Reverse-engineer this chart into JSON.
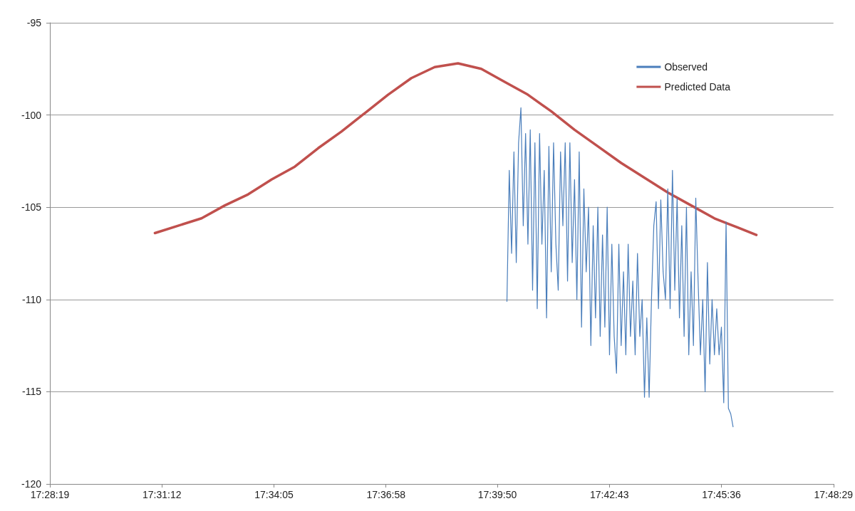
{
  "chart_data": {
    "type": "line",
    "xlim": [
      17.47194,
      17.80806
    ],
    "xticks": [
      {
        "value": 17.47194,
        "label": "17:28:19"
      },
      {
        "value": 17.52,
        "label": "17:31:12"
      },
      {
        "value": 17.56806,
        "label": "17:34:05"
      },
      {
        "value": 17.61611,
        "label": "17:36:58"
      },
      {
        "value": 17.66389,
        "label": "17:39:50"
      },
      {
        "value": 17.71194,
        "label": "17:42:43"
      },
      {
        "value": 17.76,
        "label": "17:45:36"
      },
      {
        "value": 17.80806,
        "label": "17:48:29"
      }
    ],
    "ylim": [
      -120,
      -95
    ],
    "yticks": [
      -120,
      -115,
      -110,
      -105,
      -100,
      -95
    ],
    "grid": "y",
    "legend": "top right",
    "marker": "none",
    "series": [
      {
        "name": "Observed",
        "color": "#4a7ebb",
        "x": [
          17.668,
          17.669,
          17.67,
          17.671,
          17.672,
          17.673,
          17.674,
          17.675,
          17.676,
          17.677,
          17.678,
          17.679,
          17.68,
          17.681,
          17.682,
          17.683,
          17.684,
          17.685,
          17.686,
          17.687,
          17.688,
          17.689,
          17.69,
          17.691,
          17.692,
          17.693,
          17.694,
          17.695,
          17.696,
          17.697,
          17.698,
          17.699,
          17.7,
          17.701,
          17.702,
          17.703,
          17.704,
          17.705,
          17.706,
          17.707,
          17.708,
          17.709,
          17.71,
          17.711,
          17.712,
          17.713,
          17.714,
          17.715,
          17.716,
          17.717,
          17.718,
          17.719,
          17.72,
          17.721,
          17.722,
          17.723,
          17.724,
          17.725,
          17.726,
          17.727,
          17.728,
          17.729,
          17.73,
          17.731,
          17.732,
          17.733,
          17.734,
          17.735,
          17.736,
          17.737,
          17.738,
          17.739,
          17.74,
          17.741,
          17.742,
          17.743,
          17.744,
          17.745,
          17.746,
          17.747,
          17.748,
          17.749,
          17.75,
          17.751,
          17.752,
          17.753,
          17.754,
          17.755,
          17.756,
          17.757,
          17.758,
          17.759,
          17.76,
          17.761,
          17.762,
          17.763,
          17.764,
          17.765
        ],
        "values": [
          -110.1,
          -103,
          -107.5,
          -102,
          -108,
          -101.5,
          -99.6,
          -106,
          -101,
          -107,
          -100.8,
          -109.5,
          -101.5,
          -110.5,
          -101,
          -107,
          -103,
          -111,
          -101.7,
          -108.5,
          -101.5,
          -107,
          -109.5,
          -102,
          -106,
          -101.5,
          -109,
          -101.5,
          -108,
          -103.5,
          -110,
          -102,
          -111.5,
          -104,
          -108.5,
          -105,
          -112.5,
          -106,
          -111,
          -105,
          -112,
          -106.5,
          -111.5,
          -105,
          -113,
          -107,
          -112,
          -114,
          -107,
          -112.5,
          -108.5,
          -113,
          -107,
          -112,
          -109,
          -113,
          -107.5,
          -112,
          -110,
          -115.3,
          -111,
          -115.3,
          -110,
          -106,
          -104.7,
          -110.5,
          -104.6,
          -108.5,
          -110,
          -104,
          -110.5,
          -103,
          -109.5,
          -104.5,
          -111,
          -106,
          -112,
          -105,
          -113,
          -108.5,
          -112.5,
          -104.5,
          -109,
          -113,
          -110,
          -115,
          -108,
          -113.5,
          -110,
          -113,
          -110.5,
          -113,
          -111.5,
          -115.6,
          -105.8,
          -115.9,
          -116.2,
          -116.9
        ]
      },
      {
        "name": "Predicted Data",
        "color": "#c0504d",
        "x": [
          17.517,
          17.527,
          17.537,
          17.547,
          17.557,
          17.567,
          17.577,
          17.587,
          17.597,
          17.607,
          17.617,
          17.627,
          17.637,
          17.647,
          17.657,
          17.667,
          17.677,
          17.687,
          17.697,
          17.707,
          17.717,
          17.727,
          17.737,
          17.747,
          17.757,
          17.767,
          17.775
        ],
        "values": [
          -106.4,
          -106.0,
          -105.6,
          -104.9,
          -104.3,
          -103.5,
          -102.8,
          -101.8,
          -100.9,
          -99.9,
          -98.9,
          -98.0,
          -97.4,
          -97.2,
          -97.5,
          -98.2,
          -98.9,
          -99.8,
          -100.8,
          -101.7,
          -102.6,
          -103.4,
          -104.2,
          -104.9,
          -105.6,
          -106.1,
          -106.5
        ]
      }
    ]
  }
}
